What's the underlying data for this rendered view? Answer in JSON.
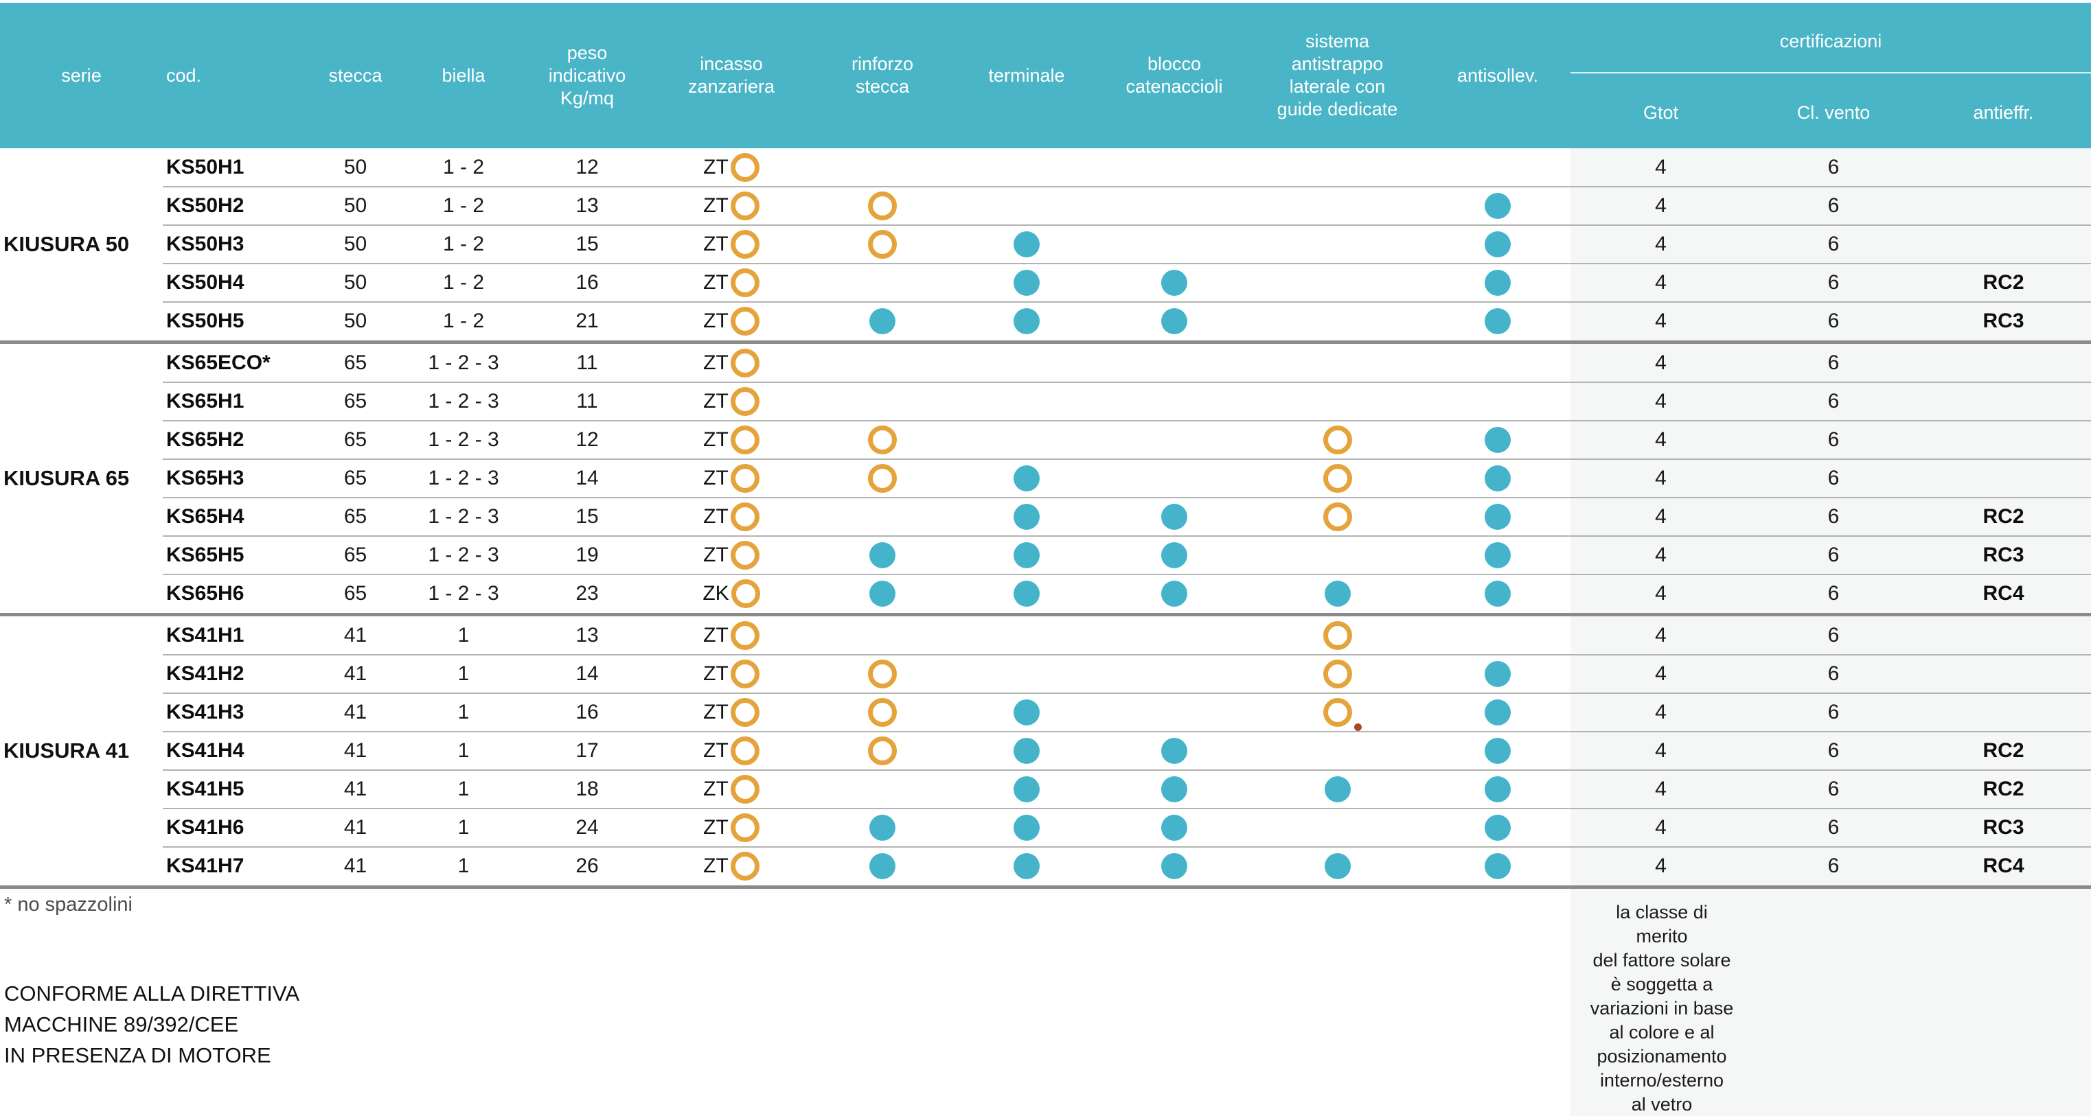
{
  "colors": {
    "teal": "#4AB5C6",
    "dot": "#45B4CB",
    "ring": "#E5A33C",
    "band": "#F5F6F6",
    "sep": "#B3B3B3",
    "thick": "#8A8A8A",
    "red": "#AE452C"
  },
  "header": {
    "columns": [
      "serie",
      "cod.",
      "stecca",
      "biella",
      "peso\nindicativo\nKg/mq",
      "incasso\nzanzariera",
      "rinforzo\nstecca",
      "terminale",
      "blocco\ncatenaccioli",
      "sistema\nantistrappo\nlaterale con\nguide dedicate",
      "antisollev."
    ],
    "cert_group": {
      "title": "certificazioni",
      "columns": [
        "Gtot",
        "Cl. vento",
        "antieffr."
      ]
    }
  },
  "markers_legend": {
    "ring": "orange-ring-marker",
    "dot": "teal-filled-dot-marker",
    "ring-dot": "orange-ring-with-small-red-dot"
  },
  "table": {
    "groups": [
      {
        "serie": "KIUSURA 50",
        "rows": [
          {
            "cod": "KS50H1",
            "stecca": "50",
            "biella": "1 - 2",
            "peso": "12",
            "incasso_text": "ZT",
            "incasso": "ring",
            "rinforzo": "none",
            "terminale": "none",
            "blocco": "none",
            "sistema": "none",
            "antisollev": "none",
            "gtot": "4",
            "cl_vento": "6",
            "antieffr": ""
          },
          {
            "cod": "KS50H2",
            "stecca": "50",
            "biella": "1 - 2",
            "peso": "13",
            "incasso_text": "ZT",
            "incasso": "ring",
            "rinforzo": "ring",
            "terminale": "none",
            "blocco": "none",
            "sistema": "none",
            "antisollev": "dot",
            "gtot": "4",
            "cl_vento": "6",
            "antieffr": ""
          },
          {
            "cod": "KS50H3",
            "stecca": "50",
            "biella": "1 - 2",
            "peso": "15",
            "incasso_text": "ZT",
            "incasso": "ring",
            "rinforzo": "ring",
            "terminale": "dot",
            "blocco": "none",
            "sistema": "none",
            "antisollev": "dot",
            "gtot": "4",
            "cl_vento": "6",
            "antieffr": ""
          },
          {
            "cod": "KS50H4",
            "stecca": "50",
            "biella": "1 - 2",
            "peso": "16",
            "incasso_text": "ZT",
            "incasso": "ring",
            "rinforzo": "none",
            "terminale": "dot",
            "blocco": "dot",
            "sistema": "none",
            "antisollev": "dot",
            "gtot": "4",
            "cl_vento": "6",
            "antieffr": "RC2"
          },
          {
            "cod": "KS50H5",
            "stecca": "50",
            "biella": "1 - 2",
            "peso": "21",
            "incasso_text": "ZT",
            "incasso": "ring",
            "rinforzo": "dot",
            "terminale": "dot",
            "blocco": "dot",
            "sistema": "none",
            "antisollev": "dot",
            "gtot": "4",
            "cl_vento": "6",
            "antieffr": "RC3"
          }
        ]
      },
      {
        "serie": "KIUSURA 65",
        "rows": [
          {
            "cod": "KS65ECO*",
            "stecca": "65",
            "biella": "1 - 2 - 3",
            "peso": "11",
            "incasso_text": "ZT",
            "incasso": "ring",
            "rinforzo": "none",
            "terminale": "none",
            "blocco": "none",
            "sistema": "none",
            "antisollev": "none",
            "gtot": "4",
            "cl_vento": "6",
            "antieffr": ""
          },
          {
            "cod": "KS65H1",
            "stecca": "65",
            "biella": "1 - 2 - 3",
            "peso": "11",
            "incasso_text": "ZT",
            "incasso": "ring",
            "rinforzo": "none",
            "terminale": "none",
            "blocco": "none",
            "sistema": "none",
            "antisollev": "none",
            "gtot": "4",
            "cl_vento": "6",
            "antieffr": ""
          },
          {
            "cod": "KS65H2",
            "stecca": "65",
            "biella": "1 - 2 - 3",
            "peso": "12",
            "incasso_text": "ZT",
            "incasso": "ring",
            "rinforzo": "ring",
            "terminale": "none",
            "blocco": "none",
            "sistema": "ring",
            "antisollev": "dot",
            "gtot": "4",
            "cl_vento": "6",
            "antieffr": ""
          },
          {
            "cod": "KS65H3",
            "stecca": "65",
            "biella": "1 - 2 - 3",
            "peso": "14",
            "incasso_text": "ZT",
            "incasso": "ring",
            "rinforzo": "ring",
            "terminale": "dot",
            "blocco": "none",
            "sistema": "ring",
            "antisollev": "dot",
            "gtot": "4",
            "cl_vento": "6",
            "antieffr": ""
          },
          {
            "cod": "KS65H4",
            "stecca": "65",
            "biella": "1 - 2 - 3",
            "peso": "15",
            "incasso_text": "ZT",
            "incasso": "ring",
            "rinforzo": "none",
            "terminale": "dot",
            "blocco": "dot",
            "sistema": "ring",
            "antisollev": "dot",
            "gtot": "4",
            "cl_vento": "6",
            "antieffr": "RC2"
          },
          {
            "cod": "KS65H5",
            "stecca": "65",
            "biella": "1 - 2 - 3",
            "peso": "19",
            "incasso_text": "ZT",
            "incasso": "ring",
            "rinforzo": "dot",
            "terminale": "dot",
            "blocco": "dot",
            "sistema": "none",
            "antisollev": "dot",
            "gtot": "4",
            "cl_vento": "6",
            "antieffr": "RC3"
          },
          {
            "cod": "KS65H6",
            "stecca": "65",
            "biella": "1 - 2 - 3",
            "peso": "23",
            "incasso_text": "ZK",
            "incasso": "ring",
            "rinforzo": "dot",
            "terminale": "dot",
            "blocco": "dot",
            "sistema": "dot",
            "antisollev": "dot",
            "gtot": "4",
            "cl_vento": "6",
            "antieffr": "RC4"
          }
        ]
      },
      {
        "serie": "KIUSURA 41",
        "rows": [
          {
            "cod": "KS41H1",
            "stecca": "41",
            "biella": "1",
            "peso": "13",
            "incasso_text": "ZT",
            "incasso": "ring",
            "rinforzo": "none",
            "terminale": "none",
            "blocco": "none",
            "sistema": "ring",
            "antisollev": "none",
            "gtot": "4",
            "cl_vento": "6",
            "antieffr": ""
          },
          {
            "cod": "KS41H2",
            "stecca": "41",
            "biella": "1",
            "peso": "14",
            "incasso_text": "ZT",
            "incasso": "ring",
            "rinforzo": "ring",
            "terminale": "none",
            "blocco": "none",
            "sistema": "ring",
            "antisollev": "dot",
            "gtot": "4",
            "cl_vento": "6",
            "antieffr": ""
          },
          {
            "cod": "KS41H3",
            "stecca": "41",
            "biella": "1",
            "peso": "16",
            "incasso_text": "ZT",
            "incasso": "ring",
            "rinforzo": "ring",
            "terminale": "dot",
            "blocco": "none",
            "sistema": "ring-dot",
            "antisollev": "dot",
            "gtot": "4",
            "cl_vento": "6",
            "antieffr": ""
          },
          {
            "cod": "KS41H4",
            "stecca": "41",
            "biella": "1",
            "peso": "17",
            "incasso_text": "ZT",
            "incasso": "ring",
            "rinforzo": "ring",
            "terminale": "dot",
            "blocco": "dot",
            "sistema": "none",
            "antisollev": "dot",
            "gtot": "4",
            "cl_vento": "6",
            "antieffr": "RC2"
          },
          {
            "cod": "KS41H5",
            "stecca": "41",
            "biella": "1",
            "peso": "18",
            "incasso_text": "ZT",
            "incasso": "ring",
            "rinforzo": "none",
            "terminale": "dot",
            "blocco": "dot",
            "sistema": "dot",
            "antisollev": "dot",
            "gtot": "4",
            "cl_vento": "6",
            "antieffr": "RC2"
          },
          {
            "cod": "KS41H6",
            "stecca": "41",
            "biella": "1",
            "peso": "24",
            "incasso_text": "ZT",
            "incasso": "ring",
            "rinforzo": "dot",
            "terminale": "dot",
            "blocco": "dot",
            "sistema": "none",
            "antisollev": "dot",
            "gtot": "4",
            "cl_vento": "6",
            "antieffr": "RC3"
          },
          {
            "cod": "KS41H7",
            "stecca": "41",
            "biella": "1",
            "peso": "26",
            "incasso_text": "ZT",
            "incasso": "ring",
            "rinforzo": "dot",
            "terminale": "dot",
            "blocco": "dot",
            "sistema": "dot",
            "antisollev": "dot",
            "gtot": "4",
            "cl_vento": "6",
            "antieffr": "RC4"
          }
        ]
      }
    ]
  },
  "footer": {
    "footnote": "* no spazzolini",
    "directive": "CONFORME ALLA DIRETTIVA\nMACCHINE 89/392/CEE\nIN PRESENZA DI MOTORE",
    "gtot_note": "la classe di\nmerito\ndel fattore solare\nè soggetta a\nvariazioni in base\nal colore e al\nposizionamento\ninterno/esterno\nal vetro"
  }
}
